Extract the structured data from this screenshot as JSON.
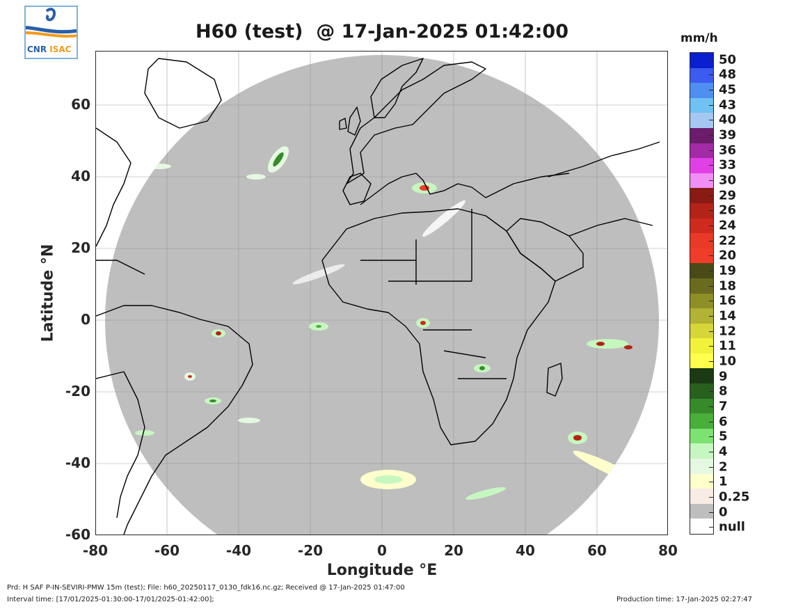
{
  "logo": {
    "text_a": "CNR",
    "text_b": "ISAC",
    "colors": {
      "blue": "#2a5fa8",
      "orange": "#f29b1d"
    }
  },
  "title": "H60 (test)  @ 17-Jan-2025 01:42:00",
  "axes": {
    "xlabel": "Longitude °E",
    "ylabel": "Latitude °N",
    "xlim": [
      -80,
      80
    ],
    "ylim": [
      -60,
      75
    ],
    "xticks": [
      -80,
      -60,
      -40,
      -20,
      0,
      20,
      40,
      60,
      80
    ],
    "yticks": [
      -60,
      -40,
      -20,
      0,
      20,
      40,
      60
    ],
    "grid": true
  },
  "colorbar": {
    "unit": "mm/h",
    "levels": [
      {
        "label": "50",
        "color": "#0a1fcf"
      },
      {
        "label": "48",
        "color": "#3c5bf0"
      },
      {
        "label": "45",
        "color": "#4f8ff2"
      },
      {
        "label": "43",
        "color": "#6fc2f2"
      },
      {
        "label": "40",
        "color": "#a4c8f2"
      },
      {
        "label": "39",
        "color": "#6b1d6b"
      },
      {
        "label": "36",
        "color": "#a32ba6"
      },
      {
        "label": "33",
        "color": "#e040e6"
      },
      {
        "label": "30",
        "color": "#f08ef4"
      },
      {
        "label": "29",
        "color": "#8a1a14"
      },
      {
        "label": "26",
        "color": "#b42318"
      },
      {
        "label": "24",
        "color": "#cf2a1e"
      },
      {
        "label": "22",
        "color": "#e83a26"
      },
      {
        "label": "20",
        "color": "#ef3d2a"
      },
      {
        "label": "19",
        "color": "#4a4a16"
      },
      {
        "label": "18",
        "color": "#6b6b20"
      },
      {
        "label": "16",
        "color": "#8f8f28"
      },
      {
        "label": "14",
        "color": "#b2b234"
      },
      {
        "label": "12",
        "color": "#d6d63a"
      },
      {
        "label": "11",
        "color": "#f2f23a"
      },
      {
        "label": "10",
        "color": "#ffff4d"
      },
      {
        "label": "9",
        "color": "#1a3a14"
      },
      {
        "label": "8",
        "color": "#28601e"
      },
      {
        "label": "7",
        "color": "#368a2a"
      },
      {
        "label": "6",
        "color": "#4aae3a"
      },
      {
        "label": "5",
        "color": "#7ee272"
      },
      {
        "label": "4",
        "color": "#c6f7c0"
      },
      {
        "label": "2",
        "color": "#e4f9e0"
      },
      {
        "label": "1",
        "color": "#ffffcc"
      },
      {
        "label": "0.25",
        "color": "#f9ece6"
      },
      {
        "label": "0",
        "color": "#bebebe"
      },
      {
        "label": "null",
        "color": "#ffffff"
      }
    ]
  },
  "footer": {
    "line1": "Prd: H SAF P-IN-SEVIRI-PMW 15m (test); File: h60_20250117_0130_fdk16.nc.gz; Received @ 17-Jan-2025 01:47:00",
    "line2": "Interval time: [17/01/2025-01:30:00-17/01/2025-01:42:00];",
    "production": "Production time: 17-Jan-2025 02:27:47"
  },
  "map_colors": {
    "disk": "#bebebe",
    "outside": "#ffffff",
    "coast": "#000000",
    "grid": "#8c8c8c"
  }
}
